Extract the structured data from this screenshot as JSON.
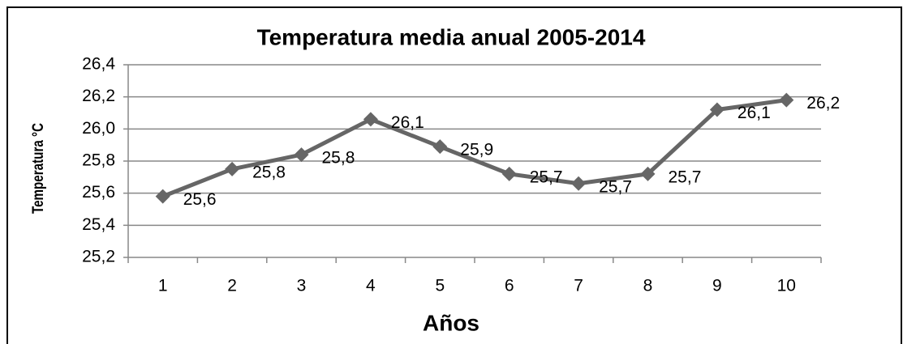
{
  "chart_data": {
    "type": "line",
    "title": "Temperatura media anual 2005-2014",
    "x_label": "Años",
    "y_label": "Temperatura °C",
    "categories": [
      "1",
      "2",
      "3",
      "4",
      "5",
      "6",
      "7",
      "8",
      "9",
      "10"
    ],
    "series": [
      {
        "color": "#666666",
        "values": [
          25.58,
          25.75,
          25.84,
          26.06,
          25.89,
          25.72,
          25.66,
          25.72,
          26.12,
          26.18
        ],
        "value_labels": [
          "25,6",
          "25,8",
          "25,8",
          "26,1",
          "25,9",
          "25,7",
          "25,7",
          "25,7",
          "26,1",
          "26,2"
        ]
      }
    ],
    "ylim": [
      25.2,
      26.4
    ],
    "yticks": [
      {
        "value": 25.2,
        "label": "25,2"
      },
      {
        "value": 25.4,
        "label": "25,4"
      },
      {
        "value": 25.6,
        "label": "25,6"
      },
      {
        "value": 25.8,
        "label": "25,8"
      },
      {
        "value": 26.0,
        "label": "26,0"
      },
      {
        "value": 26.2,
        "label": "26,2"
      },
      {
        "value": 26.4,
        "label": "26,4"
      }
    ],
    "grid": true
  }
}
